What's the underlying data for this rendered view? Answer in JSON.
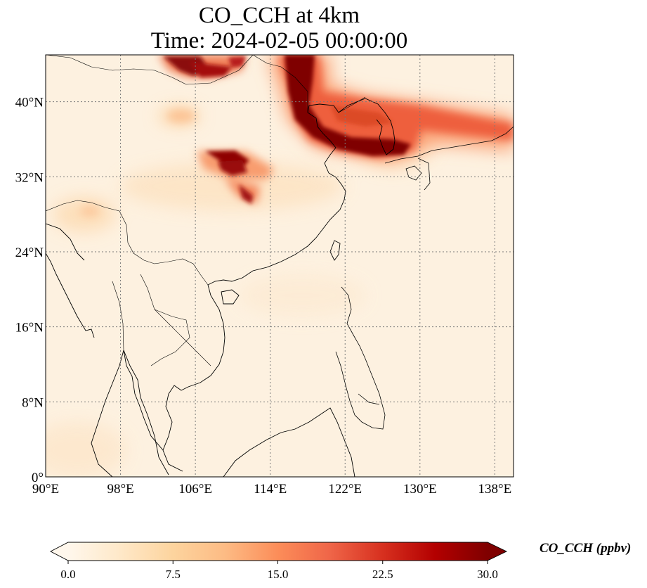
{
  "title": {
    "line1": "CO_CCH at 4km",
    "line2": "Time: 2024-02-05 00:00:00"
  },
  "map": {
    "lon_range": [
      90,
      140
    ],
    "lat_range": [
      0,
      45
    ],
    "lon_ticks": [
      {
        "value": 90,
        "label": "90°E"
      },
      {
        "value": 98,
        "label": "98°E"
      },
      {
        "value": 106,
        "label": "106°E"
      },
      {
        "value": 114,
        "label": "114°E"
      },
      {
        "value": 122,
        "label": "122°E"
      },
      {
        "value": 130,
        "label": "130°E"
      },
      {
        "value": 138,
        "label": "138°E"
      }
    ],
    "lat_ticks": [
      {
        "value": 0,
        "label": "0°"
      },
      {
        "value": 8,
        "label": "8°N"
      },
      {
        "value": 16,
        "label": "16°N"
      },
      {
        "value": 24,
        "label": "24°N"
      },
      {
        "value": 32,
        "label": "32°N"
      },
      {
        "value": 40,
        "label": "40°N"
      }
    ],
    "gridlines": true,
    "colormap": "OrRd"
  },
  "colorbar": {
    "label": "CO_CCH (ppbv)",
    "min": 0,
    "max": 30,
    "extend": "both",
    "ticks": [
      {
        "value": 0,
        "label": "0.0"
      },
      {
        "value": 7.5,
        "label": "7.5"
      },
      {
        "value": 15,
        "label": "15.0"
      },
      {
        "value": 22.5,
        "label": "22.5"
      },
      {
        "value": 30,
        "label": "30.0"
      }
    ],
    "colors": [
      "#fff7ec",
      "#fee8c8",
      "#fdd49e",
      "#fdbb84",
      "#fc8d59",
      "#ef6548",
      "#d7301f",
      "#b30000",
      "#7f0000"
    ]
  }
}
